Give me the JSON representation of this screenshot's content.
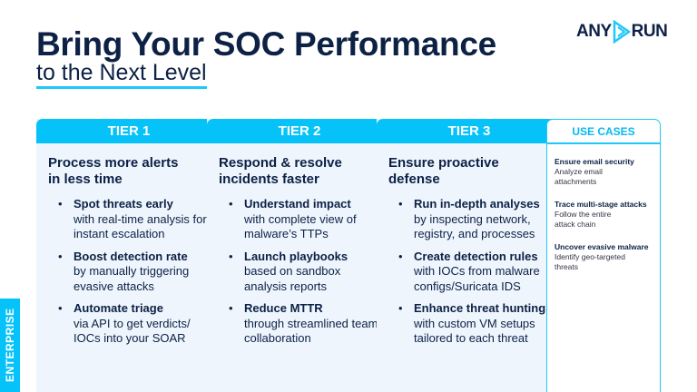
{
  "header": {
    "title": "Bring Your SOC Performance",
    "subtitle": "to the Next Level",
    "logo_left": "ANY",
    "logo_right": "RUN",
    "logo_icon": "play-triangle-icon",
    "accent": "#05c3f9"
  },
  "tiers": [
    {
      "label": "TIER 1",
      "heading": "Process more alerts in less time",
      "items": [
        {
          "title": "Spot threats early",
          "text": "with real-time analysis for instant escalation"
        },
        {
          "title": "Boost detection rate",
          "text": "by manually triggering evasive attacks"
        },
        {
          "title": "Automate triage",
          "text": "via API to get verdicts/ IOCs into your SOAR"
        }
      ]
    },
    {
      "label": "TIER 2",
      "heading": "Respond & resolve incidents faster",
      "items": [
        {
          "title": "Understand impact",
          "text": "with complete view of malware’s TTPs"
        },
        {
          "title": "Launch playbooks",
          "text": "based on sandbox analysis reports"
        },
        {
          "title": "Reduce MTTR",
          "text": "through streamlined team collaboration"
        }
      ]
    },
    {
      "label": "TIER 3",
      "heading": "Ensure proactive defense",
      "items": [
        {
          "title": "Run in-depth analyses",
          "text": "by inspecting network, registry, and processes"
        },
        {
          "title": "Create detection rules",
          "text": "with IOCs from malware configs/Suricata IDS"
        },
        {
          "title": "Enhance threat hunting",
          "text": "with custom VM setups tailored to each threat"
        }
      ]
    }
  ],
  "use_cases": {
    "label": "USE CASES",
    "items": [
      {
        "title": "Ensure email security",
        "text": "Analyze email attachments"
      },
      {
        "title": "Trace multi-stage attacks",
        "text": "Follow the entire attack chain"
      },
      {
        "title": "Uncover evasive malware",
        "text": "Identify geo-targeted threats"
      }
    ]
  },
  "side_tab": "ENTERPRISE"
}
